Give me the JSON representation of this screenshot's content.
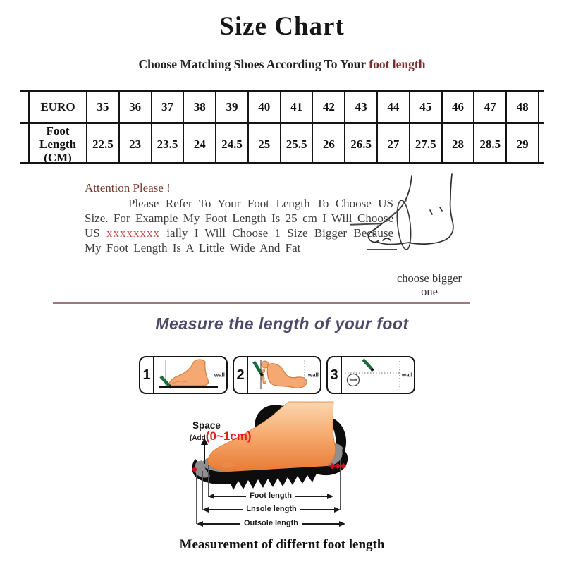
{
  "header": {
    "title": "Size Chart",
    "subtitle_prefix": "Choose Matching Shoes According To Your ",
    "subtitle_highlight": "foot length"
  },
  "chart_data": {
    "type": "table",
    "title": "Size Chart",
    "row_headers": [
      "EURO",
      "Foot Length (CM)"
    ],
    "euro": [
      35,
      36,
      37,
      38,
      39,
      40,
      41,
      42,
      43,
      44,
      45,
      46,
      47,
      48
    ],
    "foot_length_cm": [
      22.5,
      23,
      23.5,
      24,
      24.5,
      25,
      25.5,
      26,
      26.5,
      27,
      27.5,
      28,
      28.5,
      29
    ]
  },
  "size_table": {
    "euro_header": "EURO",
    "foot_header": "Foot Length (CM)"
  },
  "attention": {
    "heading": "Attention Please !",
    "body_start": "Please Refer To Your Foot Length To Choose US Size. For Example My Foot Length Is 25 cm I Will Choose US ",
    "crossed_text": "xxxxxxxx",
    "body_end": " ially I Will Choose 1 Size Bigger Because My Foot Length Is A Little Wide And Fat",
    "side_note": "choose bigger one"
  },
  "measure": {
    "heading": "Measure the length of your foot",
    "steps": [
      {
        "number": "1",
        "wall": "wall"
      },
      {
        "number": "2",
        "wall": "wall"
      },
      {
        "number": "3",
        "wall": "wall"
      }
    ]
  },
  "diagram": {
    "space_label": "Space",
    "add_small": "(Add",
    "add_red": "(0~1cm)",
    "dim_foot": "Foot length",
    "dim_insole": "Lnsole length",
    "dim_outsole": "Outsole length",
    "caption": "Measurement of differnt foot length"
  },
  "colors": {
    "subtitle_highlight": "#7a2e2e",
    "crossed_red": "#c0504d",
    "accent_red": "#e02020",
    "marker_green": "#1d6b3c",
    "heading_purple": "#4d4969",
    "divider": "#9a7a7a",
    "foot_skin": "#f5a872"
  }
}
